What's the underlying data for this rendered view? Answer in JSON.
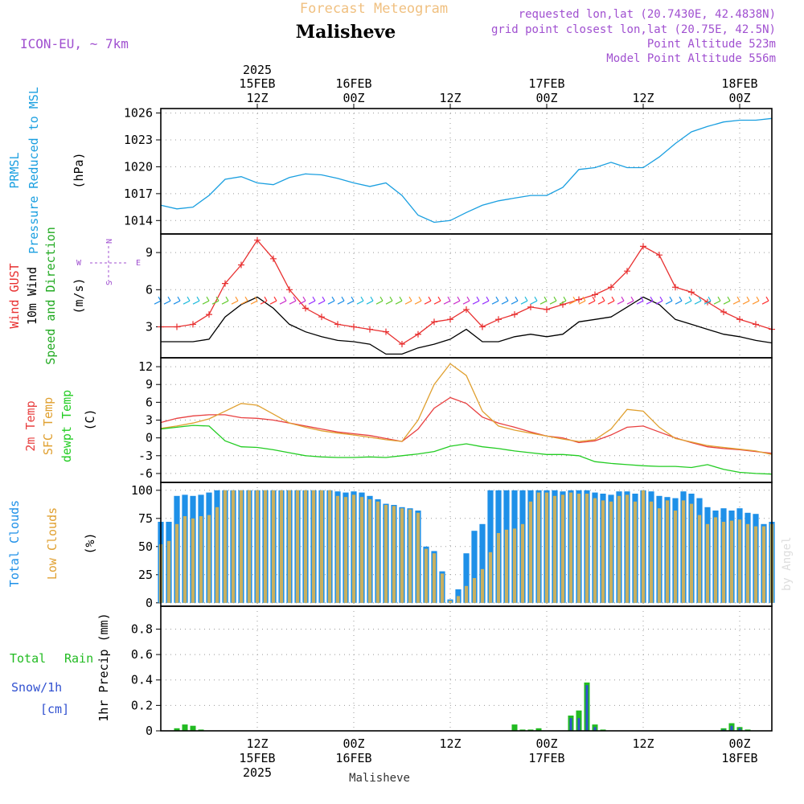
{
  "header": {
    "supertitle": "Forecast Meteogram",
    "location": "Malisheve",
    "model": "ICON-EU, ~ 7km",
    "requested": "requested lon,lat (20.7430E, 42.4838N)",
    "gridpoint": "grid point closest lon,lat (20.75E, 42.5N)",
    "point_alt": "Point Altitude 523m",
    "model_alt": "Model Point Altitude 556m",
    "footer": "Malisheve",
    "watermark": "by Angel"
  },
  "time_axis": {
    "year": "2025",
    "ticks": [
      {
        "h": 12,
        "date": "15FEB",
        "time": "12Z",
        "year": "2025"
      },
      {
        "h": 24,
        "date": "16FEB",
        "time": "00Z"
      },
      {
        "h": 36,
        "date": "",
        "time": "12Z"
      },
      {
        "h": 48,
        "date": "17FEB",
        "time": "00Z"
      },
      {
        "h": 60,
        "date": "",
        "time": "12Z"
      },
      {
        "h": 72,
        "date": "18FEB",
        "time": "00Z"
      }
    ]
  },
  "panels": {
    "pressure": {
      "label1": "PRMSL",
      "label2": "Pressure Reduced to MSL",
      "unit": "(hPa)"
    },
    "wind": {
      "label_gust": "Wind GUST",
      "label_wind": "10m Wind",
      "label_dir": "Speed and Direction",
      "unit": "(m/s)",
      "compass_n": "N",
      "compass_s": "S",
      "compass_w": "W",
      "compass_e": "E"
    },
    "temp": {
      "label1": "2m Temp",
      "label2": "SFC Temp",
      "label3": "dewpt Temp",
      "unit": "(C)"
    },
    "clouds": {
      "label1": "Total Clouds",
      "label2": "Low Clouds",
      "unit": "(%)"
    },
    "precip": {
      "label_total": "Total",
      "label_rain": "Rain",
      "label_snow": "Snow/1h",
      "label_snowunit": "[cm]",
      "ylabel": "1hr Precip (mm)"
    }
  },
  "colors": {
    "pressure": "#1a9fe0",
    "gust": "#e83030",
    "wind": "#000000",
    "temp2m": "#e84040",
    "sfc": "#e0a030",
    "dewpt": "#22cc22",
    "total_cloud": "#1e90e8",
    "low_cloud": "#c8b060",
    "rain": "#22bb22",
    "snow": "#3050d0",
    "label_purple": "#a050d0",
    "label_orange": "#f0c080"
  },
  "chart_data": [
    {
      "type": "line",
      "title": "PRMSL Pressure Reduced to MSL",
      "ylabel": "(hPa)",
      "ylim": [
        1012.5,
        1026.5
      ],
      "yticks": [
        1014,
        1017,
        1020,
        1023,
        1026
      ],
      "x_hours": [
        0,
        2,
        4,
        6,
        8,
        10,
        12,
        14,
        16,
        18,
        20,
        22,
        24,
        26,
        28,
        30,
        32,
        34,
        36,
        38,
        40,
        42,
        44,
        46,
        48,
        50,
        52,
        54,
        56,
        58,
        60,
        62,
        64,
        66,
        68,
        70,
        72,
        74,
        76
      ],
      "series": [
        {
          "name": "PRMSL",
          "values": [
            1015.7,
            1015.3,
            1015.5,
            1016.8,
            1018.6,
            1018.9,
            1018.2,
            1018.0,
            1018.8,
            1019.2,
            1019.1,
            1018.7,
            1018.2,
            1017.8,
            1018.2,
            1016.8,
            1014.6,
            1013.8,
            1014.0,
            1014.9,
            1015.7,
            1016.2,
            1016.5,
            1016.8,
            1016.8,
            1017.7,
            1019.7,
            1019.9,
            1020.5,
            1019.9,
            1019.9,
            1021.1,
            1022.6,
            1023.9,
            1024.5,
            1025.0,
            1025.2,
            1025.2,
            1025.4
          ]
        }
      ]
    },
    {
      "type": "line",
      "title": "Wind GUST / 10m Wind Speed and Direction",
      "ylabel": "(m/s)",
      "ylim": [
        0.5,
        10.5
      ],
      "yticks": [
        3,
        6,
        9
      ],
      "x_hours": [
        0,
        2,
        4,
        6,
        8,
        10,
        12,
        14,
        16,
        18,
        20,
        22,
        24,
        26,
        28,
        30,
        32,
        34,
        36,
        38,
        40,
        42,
        44,
        46,
        48,
        50,
        52,
        54,
        56,
        58,
        60,
        62,
        64,
        66,
        68,
        70,
        72,
        74,
        76
      ],
      "series": [
        {
          "name": "Wind GUST",
          "values": [
            3.0,
            3.0,
            3.2,
            4.0,
            6.5,
            8.0,
            10.0,
            8.5,
            6.0,
            4.5,
            3.8,
            3.2,
            3.0,
            2.8,
            2.6,
            1.6,
            2.4,
            3.4,
            3.6,
            4.4,
            3.0,
            3.6,
            4.0,
            4.6,
            4.4,
            4.8,
            5.2,
            5.6,
            6.2,
            7.5,
            9.5,
            8.8,
            6.2,
            5.8,
            5.0,
            4.2,
            3.6,
            3.2,
            2.8
          ]
        },
        {
          "name": "10m Wind",
          "values": [
            1.8,
            1.8,
            1.8,
            2.0,
            3.8,
            4.8,
            5.4,
            4.5,
            3.2,
            2.6,
            2.2,
            1.9,
            1.8,
            1.6,
            0.8,
            0.8,
            1.3,
            1.6,
            2.0,
            2.8,
            1.8,
            1.8,
            2.2,
            2.4,
            2.2,
            2.4,
            3.4,
            3.6,
            3.8,
            4.6,
            5.4,
            4.8,
            3.6,
            3.2,
            2.8,
            2.4,
            2.2,
            1.9,
            1.7
          ]
        }
      ]
    },
    {
      "type": "line",
      "title": "2m Temp / SFC Temp / dewpt Temp",
      "ylabel": "(C)",
      "ylim": [
        -7.5,
        13.5
      ],
      "yticks": [
        -6,
        -3,
        0,
        3,
        6,
        9,
        12
      ],
      "x_hours": [
        0,
        2,
        4,
        6,
        8,
        10,
        12,
        14,
        16,
        18,
        20,
        22,
        24,
        26,
        28,
        30,
        32,
        34,
        36,
        38,
        40,
        42,
        44,
        46,
        48,
        50,
        52,
        54,
        56,
        58,
        60,
        62,
        64,
        66,
        68,
        70,
        72,
        74,
        76
      ],
      "series": [
        {
          "name": "2m Temp",
          "values": [
            2.6,
            3.3,
            3.7,
            3.9,
            3.9,
            3.4,
            3.3,
            3.0,
            2.5,
            2.0,
            1.5,
            1.0,
            0.7,
            0.4,
            -0.1,
            -0.6,
            1.5,
            5.0,
            6.8,
            5.8,
            3.5,
            2.5,
            1.8,
            1.0,
            0.3,
            0.0,
            -0.8,
            -0.5,
            0.5,
            1.8,
            2.0,
            1.0,
            0.0,
            -0.8,
            -1.5,
            -1.8,
            -2.0,
            -2.3,
            -2.6
          ]
        },
        {
          "name": "SFC Temp",
          "values": [
            1.6,
            2.0,
            2.5,
            3.2,
            4.5,
            5.8,
            5.5,
            4.0,
            2.5,
            1.8,
            1.2,
            0.8,
            0.5,
            0.1,
            -0.3,
            -0.6,
            3.0,
            9.0,
            12.5,
            10.5,
            4.5,
            2.0,
            1.3,
            0.8,
            0.3,
            -0.2,
            -0.6,
            -0.3,
            1.5,
            4.8,
            4.5,
            1.8,
            -0.1,
            -0.7,
            -1.3,
            -1.6,
            -1.9,
            -2.2,
            -2.8
          ]
        },
        {
          "name": "dewpt Temp",
          "values": [
            1.5,
            1.8,
            2.1,
            2.0,
            -0.5,
            -1.5,
            -1.6,
            -2.0,
            -2.5,
            -3.0,
            -3.2,
            -3.3,
            -3.3,
            -3.2,
            -3.3,
            -3.0,
            -2.7,
            -2.3,
            -1.4,
            -1.0,
            -1.5,
            -1.8,
            -2.2,
            -2.5,
            -2.8,
            -2.8,
            -3.0,
            -4.0,
            -4.3,
            -4.5,
            -4.7,
            -4.8,
            -4.8,
            -5.0,
            -4.5,
            -5.3,
            -5.8,
            -6.0,
            -6.1
          ]
        }
      ]
    },
    {
      "type": "bar",
      "title": "Total Clouds / Low Clouds",
      "ylabel": "(%)",
      "ylim": [
        -3,
        107
      ],
      "yticks": [
        0,
        25,
        50,
        75,
        100
      ],
      "x_hours": [
        0,
        1,
        2,
        3,
        4,
        5,
        6,
        7,
        8,
        9,
        10,
        11,
        12,
        13,
        14,
        15,
        16,
        17,
        18,
        19,
        20,
        21,
        22,
        23,
        24,
        25,
        26,
        27,
        28,
        29,
        30,
        31,
        32,
        33,
        34,
        35,
        36,
        37,
        38,
        39,
        40,
        41,
        42,
        43,
        44,
        45,
        46,
        47,
        48,
        49,
        50,
        51,
        52,
        53,
        54,
        55,
        56,
        57,
        58,
        59,
        60,
        61,
        62,
        63,
        64,
        65,
        66,
        67,
        68,
        69,
        70,
        71,
        72,
        73,
        74,
        75,
        76
      ],
      "series": [
        {
          "name": "Total Clouds",
          "values": [
            72,
            72,
            95,
            96,
            95,
            96,
            98,
            100,
            100,
            100,
            100,
            100,
            100,
            100,
            100,
            100,
            100,
            100,
            100,
            100,
            100,
            100,
            99,
            98,
            99,
            98,
            95,
            92,
            88,
            87,
            85,
            84,
            82,
            50,
            46,
            28,
            3,
            12,
            44,
            64,
            70,
            100,
            100,
            100,
            100,
            100,
            100,
            100,
            100,
            100,
            99,
            100,
            100,
            100,
            98,
            97,
            96,
            99,
            99,
            97,
            100,
            99,
            95,
            94,
            93,
            99,
            97,
            93,
            85,
            82,
            84,
            82,
            84,
            80,
            79,
            70,
            72
          ]
        },
        {
          "name": "Low Clouds",
          "values": [
            52,
            55,
            70,
            77,
            75,
            77,
            78,
            85,
            100,
            100,
            100,
            100,
            100,
            100,
            100,
            100,
            100,
            100,
            100,
            100,
            100,
            100,
            95,
            94,
            96,
            94,
            92,
            90,
            87,
            86,
            84,
            83,
            80,
            48,
            44,
            26,
            2,
            6,
            15,
            22,
            30,
            45,
            62,
            65,
            66,
            70,
            90,
            98,
            98,
            95,
            96,
            98,
            97,
            97,
            93,
            91,
            90,
            95,
            96,
            90,
            100,
            90,
            84,
            91,
            82,
            91,
            88,
            78,
            70,
            76,
            72,
            73,
            74,
            70,
            68,
            68,
            70
          ]
        }
      ]
    },
    {
      "type": "bar",
      "title": "Total Rain / Snow/1h",
      "ylabel": "1hr Precip (mm)",
      "ylim": [
        0,
        0.98
      ],
      "yticks": [
        0,
        0.2,
        0.4,
        0.6,
        0.8
      ],
      "x_hours": [
        0,
        1,
        2,
        3,
        4,
        5,
        6,
        7,
        8,
        9,
        10,
        11,
        12,
        13,
        14,
        15,
        16,
        17,
        18,
        19,
        20,
        21,
        22,
        23,
        24,
        25,
        26,
        27,
        28,
        29,
        30,
        31,
        32,
        33,
        34,
        35,
        36,
        37,
        38,
        39,
        40,
        41,
        42,
        43,
        44,
        45,
        46,
        47,
        48,
        49,
        50,
        51,
        52,
        53,
        54,
        55,
        56,
        57,
        58,
        59,
        60,
        61,
        62,
        63,
        64,
        65,
        66,
        67,
        68,
        69,
        70,
        71,
        72,
        73,
        74,
        75,
        76
      ],
      "series": [
        {
          "name": "Total Rain",
          "values": [
            0,
            0,
            0.02,
            0.05,
            0.04,
            0.01,
            0,
            0,
            0,
            0,
            0,
            0,
            0,
            0,
            0,
            0,
            0,
            0,
            0,
            0,
            0,
            0,
            0,
            0,
            0,
            0,
            0,
            0,
            0,
            0,
            0,
            0,
            0,
            0,
            0,
            0,
            0,
            0,
            0,
            0,
            0,
            0,
            0,
            0,
            0.05,
            0.01,
            0.01,
            0.02,
            0,
            0,
            0,
            0.12,
            0.16,
            0.38,
            0.05,
            0.01,
            0,
            0,
            0,
            0,
            0,
            0,
            0,
            0,
            0,
            0,
            0,
            0,
            0,
            0,
            0.02,
            0.06,
            0.03,
            0.01,
            0,
            0,
            0
          ]
        },
        {
          "name": "Snow/1h",
          "values": [
            0,
            0,
            0,
            0,
            0,
            0,
            0,
            0,
            0,
            0,
            0,
            0,
            0,
            0,
            0,
            0,
            0,
            0,
            0,
            0,
            0,
            0,
            0,
            0,
            0,
            0,
            0,
            0,
            0,
            0,
            0,
            0,
            0,
            0,
            0,
            0,
            0,
            0,
            0,
            0,
            0,
            0,
            0,
            0,
            0,
            0,
            0,
            0,
            0,
            0,
            0,
            0.1,
            0.1,
            0.36,
            0.03,
            0,
            0,
            0,
            0,
            0,
            0,
            0,
            0,
            0,
            0,
            0,
            0,
            0,
            0,
            0,
            0.01,
            0.04,
            0.02,
            0,
            0,
            0,
            0
          ]
        }
      ]
    }
  ]
}
